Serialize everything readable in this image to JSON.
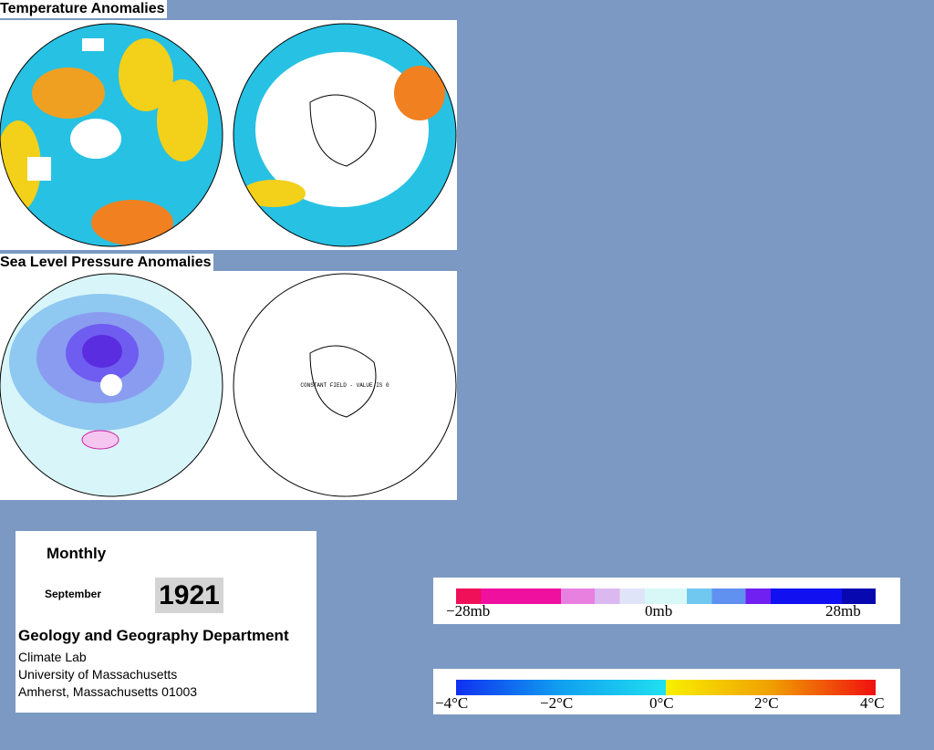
{
  "temperature": {
    "title": "Temperature Anomalies"
  },
  "pressure": {
    "title": "Sea Level Pressure Anomalies",
    "note": "CONSTANT FIELD - VALUE IS 0"
  },
  "info": {
    "period": "Monthly",
    "month": "September",
    "year": "1921",
    "department": "Geology and Geography Department",
    "lines": [
      "Climate Lab",
      "University of Massachusetts",
      "Amherst, Massachusetts 01003"
    ]
  },
  "pressure_legend": {
    "labels": [
      "−28mb",
      "0mb",
      "28mb"
    ]
  },
  "temperature_legend": {
    "labels": [
      "−4°C",
      "−2°C",
      "0°C",
      "2°C",
      "4°C"
    ]
  }
}
